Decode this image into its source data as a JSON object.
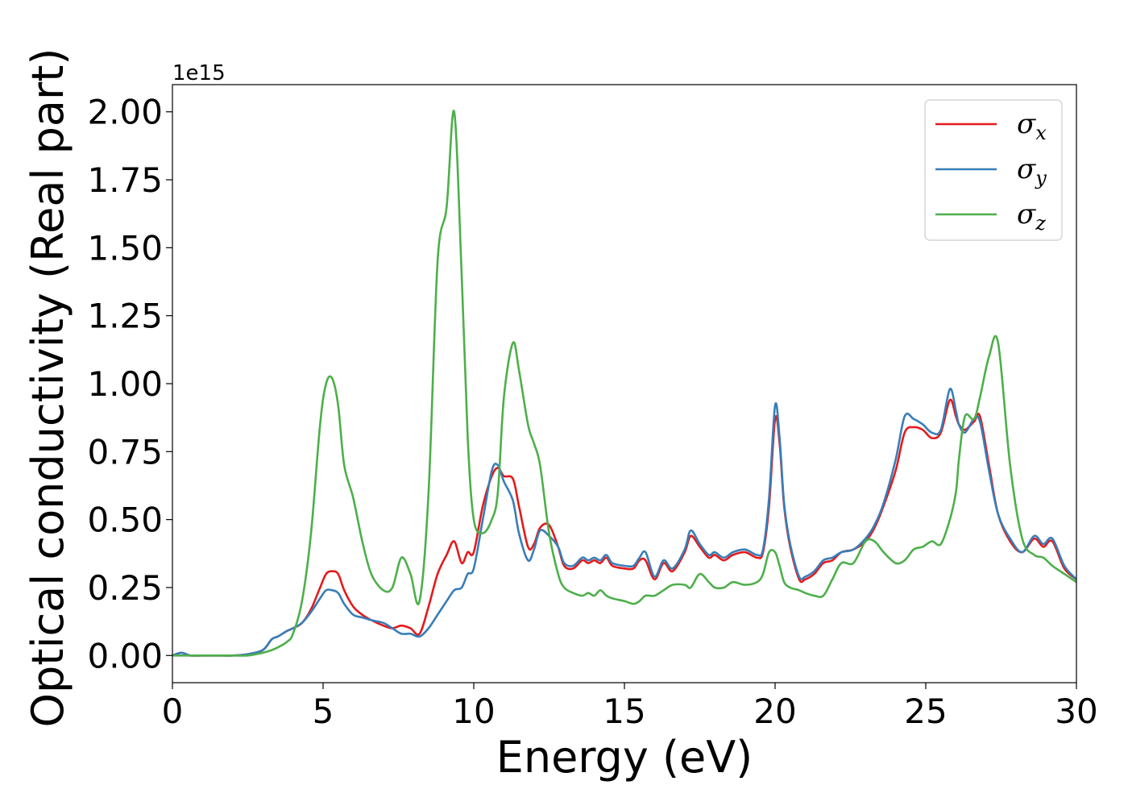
{
  "chart_data": {
    "type": "line",
    "xlabel": "Energy (eV)",
    "ylabel": "Optical conductivity (Real part)",
    "y_offset_label": "1e15",
    "xlim": [
      0,
      30
    ],
    "ylim": [
      -0.1,
      2.1
    ],
    "x_ticks": [
      0,
      5,
      10,
      15,
      20,
      25,
      30
    ],
    "x_tick_labels": [
      "0",
      "5",
      "10",
      "15",
      "20",
      "25",
      "30"
    ],
    "y_ticks": [
      0,
      0.25,
      0.5,
      0.75,
      1.0,
      1.25,
      1.5,
      1.75,
      2.0
    ],
    "y_tick_labels": [
      "0.00",
      "0.25",
      "0.50",
      "0.75",
      "1.00",
      "1.25",
      "1.50",
      "1.75",
      "2.00"
    ],
    "grid": false,
    "legend_position": "top-right",
    "series": [
      {
        "name": "σ",
        "subscript": "x",
        "color": "#e41a1c",
        "x": [
          0,
          0.3,
          0.6,
          1,
          1.5,
          2,
          2.5,
          3,
          3.3,
          3.5,
          3.8,
          4,
          4.3,
          4.6,
          4.9,
          5.1,
          5.3,
          5.5,
          5.7,
          6,
          6.3,
          6.6,
          7,
          7.3,
          7.6,
          7.9,
          8.2,
          8.5,
          8.8,
          9.1,
          9.35,
          9.6,
          9.8,
          10,
          10.3,
          10.6,
          10.8,
          11,
          11.3,
          11.5,
          11.8,
          12,
          12.2,
          12.5,
          12.8,
          13,
          13.3,
          13.6,
          13.8,
          14,
          14.2,
          14.4,
          14.6,
          15,
          15.3,
          15.5,
          15.7,
          16,
          16.3,
          16.6,
          17,
          17.2,
          17.5,
          17.8,
          18,
          18.3,
          18.6,
          19,
          19.4,
          19.6,
          19.8,
          20,
          20.15,
          20.3,
          20.5,
          20.8,
          21,
          21.3,
          21.6,
          21.9,
          22.2,
          22.6,
          23,
          23.3,
          23.6,
          24,
          24.3,
          24.6,
          24.9,
          25.2,
          25.5,
          25.8,
          26,
          26.1,
          26.3,
          26.6,
          26.8,
          27.1,
          27.4,
          27.8,
          28.2,
          28.6,
          28.9,
          29.2,
          29.6,
          30
        ],
        "y": [
          0,
          0.01,
          0,
          0,
          0,
          0,
          0.005,
          0.02,
          0.06,
          0.07,
          0.09,
          0.1,
          0.12,
          0.17,
          0.25,
          0.3,
          0.31,
          0.3,
          0.24,
          0.18,
          0.15,
          0.13,
          0.11,
          0.1,
          0.11,
          0.1,
          0.08,
          0.18,
          0.3,
          0.37,
          0.42,
          0.34,
          0.38,
          0.38,
          0.55,
          0.66,
          0.69,
          0.66,
          0.65,
          0.55,
          0.4,
          0.41,
          0.47,
          0.48,
          0.4,
          0.33,
          0.32,
          0.35,
          0.34,
          0.35,
          0.34,
          0.36,
          0.33,
          0.32,
          0.32,
          0.35,
          0.35,
          0.28,
          0.34,
          0.31,
          0.38,
          0.44,
          0.4,
          0.36,
          0.37,
          0.35,
          0.37,
          0.38,
          0.36,
          0.38,
          0.55,
          0.87,
          0.78,
          0.55,
          0.4,
          0.28,
          0.28,
          0.3,
          0.34,
          0.35,
          0.38,
          0.39,
          0.42,
          0.47,
          0.55,
          0.68,
          0.82,
          0.84,
          0.83,
          0.8,
          0.82,
          0.94,
          0.88,
          0.85,
          0.83,
          0.86,
          0.88,
          0.7,
          0.52,
          0.42,
          0.38,
          0.43,
          0.4,
          0.42,
          0.32,
          0.28
        ],
        "note_x_note": ""
      },
      {
        "name": "σ",
        "subscript": "y",
        "color": "#377eb8",
        "x": [
          0,
          0.3,
          0.6,
          1,
          1.5,
          2,
          2.5,
          3,
          3.3,
          3.5,
          3.8,
          4,
          4.3,
          4.6,
          4.9,
          5.1,
          5.3,
          5.5,
          5.7,
          6,
          6.3,
          6.6,
          7,
          7.3,
          7.6,
          7.9,
          8.2,
          8.5,
          8.8,
          9.1,
          9.35,
          9.6,
          9.8,
          10,
          10.3,
          10.6,
          10.8,
          11,
          11.3,
          11.5,
          11.8,
          12,
          12.2,
          12.5,
          12.8,
          13,
          13.3,
          13.6,
          13.8,
          14,
          14.2,
          14.4,
          14.6,
          15,
          15.3,
          15.5,
          15.7,
          16,
          16.3,
          16.6,
          17,
          17.2,
          17.5,
          17.8,
          18,
          18.3,
          18.6,
          19,
          19.4,
          19.6,
          19.8,
          20,
          20.15,
          20.3,
          20.5,
          20.8,
          21,
          21.3,
          21.6,
          21.9,
          22.2,
          22.6,
          23,
          23.3,
          23.6,
          24,
          24.3,
          24.6,
          24.9,
          25.2,
          25.5,
          25.8,
          26,
          26.1,
          26.3,
          26.6,
          26.8,
          27.1,
          27.4,
          27.8,
          28.2,
          28.6,
          28.9,
          29.2,
          29.6,
          30
        ],
        "y": [
          0,
          0.01,
          0,
          0,
          0,
          0,
          0.005,
          0.02,
          0.06,
          0.07,
          0.09,
          0.1,
          0.12,
          0.16,
          0.21,
          0.24,
          0.24,
          0.23,
          0.19,
          0.15,
          0.14,
          0.13,
          0.12,
          0.1,
          0.08,
          0.08,
          0.07,
          0.1,
          0.15,
          0.2,
          0.24,
          0.25,
          0.3,
          0.32,
          0.5,
          0.68,
          0.7,
          0.64,
          0.57,
          0.45,
          0.35,
          0.39,
          0.46,
          0.44,
          0.4,
          0.34,
          0.33,
          0.36,
          0.35,
          0.36,
          0.35,
          0.37,
          0.34,
          0.33,
          0.33,
          0.36,
          0.38,
          0.29,
          0.35,
          0.32,
          0.39,
          0.46,
          0.41,
          0.37,
          0.38,
          0.36,
          0.38,
          0.39,
          0.37,
          0.39,
          0.58,
          0.92,
          0.8,
          0.56,
          0.41,
          0.29,
          0.29,
          0.31,
          0.35,
          0.36,
          0.38,
          0.39,
          0.43,
          0.48,
          0.56,
          0.72,
          0.88,
          0.87,
          0.85,
          0.82,
          0.83,
          0.98,
          0.9,
          0.85,
          0.82,
          0.87,
          0.86,
          0.68,
          0.52,
          0.43,
          0.38,
          0.44,
          0.41,
          0.43,
          0.33,
          0.28
        ]
      },
      {
        "name": "σ",
        "subscript": "z",
        "color": "#4daf4a",
        "x": [
          0,
          0.3,
          0.6,
          1,
          1.5,
          2,
          2.5,
          3,
          3.3,
          3.5,
          3.8,
          4,
          4.3,
          4.6,
          4.9,
          5.1,
          5.3,
          5.5,
          5.7,
          6,
          6.3,
          6.6,
          7,
          7.3,
          7.6,
          7.9,
          8.2,
          8.5,
          8.8,
          9.1,
          9.35,
          9.6,
          9.8,
          10,
          10.3,
          10.6,
          10.8,
          11,
          11.3,
          11.5,
          11.8,
          12,
          12.2,
          12.5,
          12.8,
          13,
          13.3,
          13.6,
          13.8,
          14,
          14.2,
          14.4,
          14.6,
          15,
          15.3,
          15.5,
          15.7,
          16,
          16.3,
          16.6,
          17,
          17.2,
          17.5,
          17.8,
          18,
          18.3,
          18.6,
          19,
          19.4,
          19.6,
          19.8,
          20,
          20.15,
          20.3,
          20.5,
          20.8,
          21,
          21.3,
          21.6,
          21.9,
          22.2,
          22.6,
          23,
          23.3,
          23.6,
          24,
          24.3,
          24.6,
          24.9,
          25.2,
          25.5,
          25.8,
          26,
          26.1,
          26.3,
          26.6,
          26.8,
          27.1,
          27.4,
          27.8,
          28.2,
          28.6,
          28.9,
          29.2,
          29.6,
          30
        ],
        "y": [
          0,
          0,
          0,
          0,
          0,
          0,
          0,
          0.01,
          0.02,
          0.03,
          0.05,
          0.08,
          0.2,
          0.45,
          0.85,
          1.0,
          1.02,
          0.92,
          0.7,
          0.58,
          0.42,
          0.3,
          0.24,
          0.25,
          0.36,
          0.3,
          0.2,
          0.6,
          1.45,
          1.65,
          2.0,
          1.4,
          0.8,
          0.5,
          0.45,
          0.5,
          0.6,
          0.95,
          1.15,
          1.05,
          0.85,
          0.78,
          0.7,
          0.45,
          0.3,
          0.25,
          0.23,
          0.22,
          0.23,
          0.22,
          0.24,
          0.22,
          0.21,
          0.2,
          0.19,
          0.2,
          0.22,
          0.22,
          0.24,
          0.26,
          0.26,
          0.25,
          0.3,
          0.27,
          0.25,
          0.25,
          0.27,
          0.26,
          0.27,
          0.3,
          0.38,
          0.38,
          0.33,
          0.27,
          0.25,
          0.24,
          0.23,
          0.22,
          0.22,
          0.28,
          0.34,
          0.34,
          0.42,
          0.42,
          0.38,
          0.34,
          0.35,
          0.39,
          0.4,
          0.42,
          0.41,
          0.5,
          0.6,
          0.72,
          0.88,
          0.87,
          0.95,
          1.1,
          1.15,
          0.7,
          0.43,
          0.37,
          0.36,
          0.33,
          0.3,
          0.27
        ]
      }
    ]
  }
}
